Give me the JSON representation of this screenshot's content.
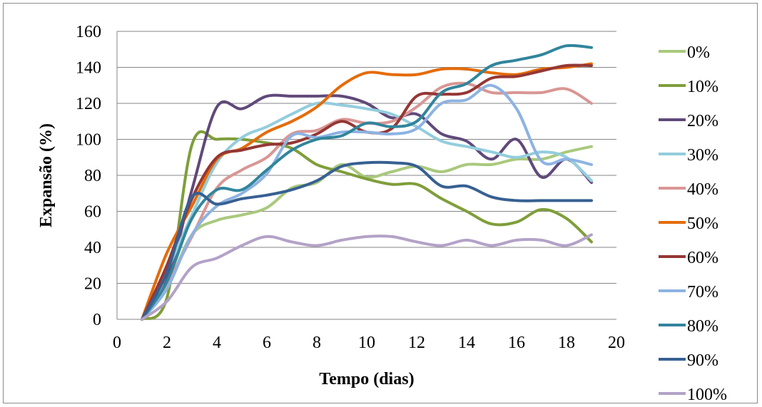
{
  "chart_data": {
    "type": "line",
    "xlabel": "Tempo (dias)",
    "ylabel": "Expansão (%)",
    "xlim": [
      0,
      20
    ],
    "ylim": [
      0,
      160
    ],
    "xticks": [
      0,
      2,
      4,
      6,
      8,
      10,
      12,
      14,
      16,
      18,
      20
    ],
    "yticks": [
      0,
      20,
      40,
      60,
      80,
      100,
      120,
      140,
      160
    ],
    "grid": "horizontal",
    "legend_position": "right",
    "x": [
      1,
      2,
      3,
      4,
      5,
      6,
      7,
      8,
      9,
      10,
      11,
      12,
      13,
      14,
      15,
      16,
      17,
      18,
      19
    ],
    "series": [
      {
        "name": "0%",
        "color": "#a9c97d",
        "values": [
          0,
          18,
          47,
          55,
          58,
          62,
          73,
          76,
          86,
          79,
          82,
          85,
          82,
          86,
          86,
          89,
          89,
          93,
          96
        ]
      },
      {
        "name": "10%",
        "color": "#7f9e3a",
        "values": [
          0,
          12,
          97,
          100,
          100,
          98,
          95,
          86,
          82,
          78,
          75,
          75,
          67,
          60,
          53,
          54,
          61,
          56,
          43
        ]
      },
      {
        "name": "20%",
        "color": "#60497a",
        "values": [
          0,
          22,
          72,
          118,
          117,
          124,
          124,
          124,
          124,
          120,
          112,
          114,
          103,
          99,
          89,
          100,
          79,
          89,
          76
        ]
      },
      {
        "name": "30%",
        "color": "#93cddd",
        "values": [
          0,
          27,
          58,
          87,
          101,
          107,
          114,
          120,
          119,
          117,
          114,
          107,
          99,
          96,
          93,
          90,
          93,
          90,
          77
        ]
      },
      {
        "name": "40%",
        "color": "#d99694",
        "values": [
          0,
          20,
          46,
          73,
          83,
          90,
          103,
          105,
          111,
          109,
          110,
          118,
          129,
          131,
          126,
          126,
          126,
          128,
          120
        ]
      },
      {
        "name": "50%",
        "color": "#e46c0a",
        "values": [
          0,
          37,
          63,
          89,
          95,
          104,
          110,
          118,
          130,
          137,
          136,
          136,
          139,
          139,
          137,
          136,
          139,
          140,
          142
        ]
      },
      {
        "name": "60%",
        "color": "#953735",
        "values": [
          0,
          30,
          67,
          90,
          94,
          97,
          98,
          103,
          110,
          104,
          106,
          124,
          125,
          126,
          134,
          135,
          138,
          141,
          141
        ]
      },
      {
        "name": "70%",
        "color": "#8db3e2",
        "values": [
          0,
          17,
          47,
          63,
          70,
          81,
          102,
          101,
          104,
          104,
          103,
          106,
          120,
          122,
          130,
          117,
          88,
          89,
          86
        ]
      },
      {
        "name": "80%",
        "color": "#31859c",
        "values": [
          0,
          21,
          56,
          72,
          72,
          83,
          94,
          100,
          102,
          109,
          107,
          110,
          126,
          131,
          141,
          144,
          147,
          152,
          151
        ]
      },
      {
        "name": "90%",
        "color": "#376092",
        "values": [
          0,
          26,
          68,
          64,
          67,
          69,
          72,
          77,
          85,
          87,
          87,
          85,
          74,
          74,
          68,
          66,
          66,
          66,
          66
        ]
      },
      {
        "name": "100%",
        "color": "#b3a2c7",
        "values": [
          0,
          10,
          29,
          34,
          41,
          46,
          43,
          41,
          44,
          46,
          46,
          43,
          41,
          44,
          41,
          44,
          44,
          41,
          47
        ]
      }
    ]
  }
}
